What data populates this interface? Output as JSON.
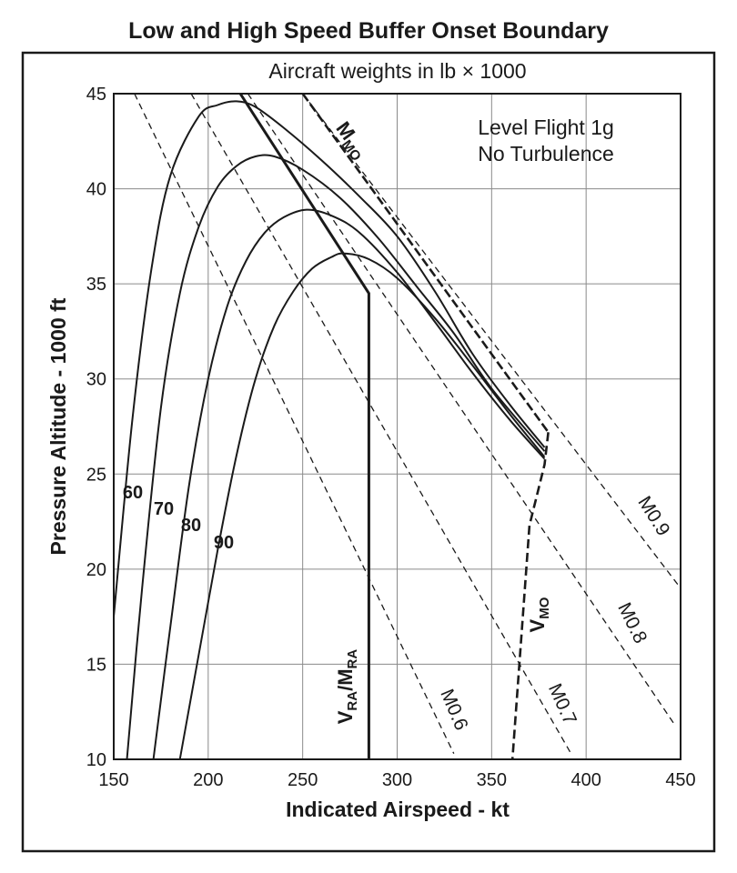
{
  "chart_data": {
    "type": "line",
    "title": "Low and High Speed Buffer Onset Boundary",
    "subtitle": "Aircraft weights in lb × 1000",
    "xlabel": "Indicated Airspeed - kt",
    "ylabel": "Pressure Altitude - 1000 ft",
    "xlim": [
      150,
      450
    ],
    "ylim": [
      10,
      45
    ],
    "x_ticks": [
      "150",
      "200",
      "250",
      "300",
      "350",
      "400",
      "450"
    ],
    "y_ticks": [
      "10",
      "15",
      "20",
      "25",
      "30",
      "35",
      "40",
      "45"
    ],
    "grid": true,
    "annotation_lines": [
      "Level Flight 1g",
      "No Turbulence"
    ],
    "weight_curves": [
      {
        "label": "60",
        "points": [
          [
            150,
            17.5
          ],
          [
            160,
            28
          ],
          [
            170,
            35.8
          ],
          [
            180,
            40.7
          ],
          [
            195,
            43.8
          ],
          [
            205,
            44.4
          ],
          [
            215,
            44.6
          ],
          [
            225,
            44.3
          ],
          [
            240,
            43.2
          ],
          [
            260,
            41.5
          ],
          [
            280,
            39.6
          ],
          [
            300,
            37.5
          ],
          [
            320,
            34.6
          ],
          [
            340,
            31.3
          ],
          [
            360,
            28.6
          ],
          [
            378,
            26.4
          ]
        ]
      },
      {
        "label": "70",
        "points": [
          [
            157,
            10
          ],
          [
            165,
            19
          ],
          [
            175,
            28.5
          ],
          [
            185,
            34.5
          ],
          [
            195,
            38
          ],
          [
            205,
            40.1
          ],
          [
            215,
            41.2
          ],
          [
            225,
            41.7
          ],
          [
            235,
            41.7
          ],
          [
            250,
            41
          ],
          [
            270,
            39.5
          ],
          [
            290,
            37.4
          ],
          [
            310,
            34.9
          ],
          [
            330,
            32.4
          ],
          [
            350,
            29.5
          ],
          [
            378,
            26.2
          ]
        ]
      },
      {
        "label": "80",
        "points": [
          [
            171,
            10
          ],
          [
            180,
            17
          ],
          [
            190,
            24.5
          ],
          [
            200,
            30
          ],
          [
            210,
            33.8
          ],
          [
            220,
            36.2
          ],
          [
            230,
            37.7
          ],
          [
            240,
            38.5
          ],
          [
            252,
            38.9
          ],
          [
            265,
            38.6
          ],
          [
            280,
            37.7
          ],
          [
            300,
            35.6
          ],
          [
            320,
            33
          ],
          [
            340,
            30.3
          ],
          [
            360,
            27.8
          ],
          [
            378,
            25.8
          ]
        ]
      },
      {
        "label": "90",
        "points": [
          [
            185,
            10
          ],
          [
            195,
            15.5
          ],
          [
            205,
            21
          ],
          [
            215,
            26
          ],
          [
            225,
            30
          ],
          [
            235,
            32.8
          ],
          [
            245,
            34.6
          ],
          [
            255,
            35.8
          ],
          [
            265,
            36.4
          ],
          [
            272,
            36.6
          ],
          [
            285,
            36.3
          ],
          [
            300,
            35.3
          ],
          [
            320,
            33.2
          ],
          [
            340,
            30.7
          ],
          [
            360,
            28.1
          ],
          [
            378,
            25.9
          ]
        ]
      }
    ],
    "mach_lines": [
      {
        "label": "M0.6",
        "points": [
          [
            161,
            45
          ],
          [
            330,
            10.3
          ]
        ]
      },
      {
        "label": "M0.7",
        "points": [
          [
            191,
            45
          ],
          [
            392,
            10.3
          ]
        ]
      },
      {
        "label": "M0.8",
        "points": [
          [
            221,
            45
          ],
          [
            447,
            11.8
          ]
        ]
      },
      {
        "label": "M0.9",
        "points": [
          [
            250,
            45
          ],
          [
            450,
            19
          ]
        ]
      }
    ],
    "vra_mra": {
      "label_main": "V",
      "sub1": "RA",
      "slash": "/M",
      "sub2": "RA",
      "points": [
        [
          217,
          45
        ],
        [
          285,
          34.5
        ],
        [
          285,
          10
        ]
      ]
    },
    "mmo": {
      "label_main": "M",
      "sub": "MO",
      "points": [
        [
          250,
          45
        ],
        [
          380,
          27.2
        ]
      ]
    },
    "vmo": {
      "label_main": "V",
      "sub": "MO",
      "points": [
        [
          380,
          27.2
        ],
        [
          378,
          25.5
        ],
        [
          370,
          22.3
        ],
        [
          361,
          10
        ]
      ]
    }
  }
}
